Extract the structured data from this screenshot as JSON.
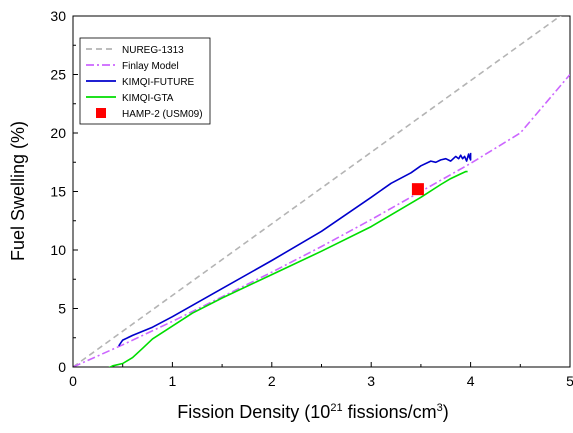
{
  "chart_data": {
    "type": "line",
    "title": "",
    "xlabel": {
      "prefix": "Fission Density (10",
      "sup1": "21",
      "middle": " fissions/cm",
      "sup2": "3",
      "suffix": ")"
    },
    "ylabel": "Fuel Swelling (%)",
    "xlim": [
      0,
      5
    ],
    "ylim": [
      0,
      30
    ],
    "xticks": [
      0,
      1,
      2,
      3,
      4,
      5
    ],
    "yticks": [
      0,
      5,
      10,
      15,
      20,
      25,
      30
    ],
    "grid": false,
    "legend_position": "top-left",
    "series": [
      {
        "name": "NUREG-1313",
        "kind": "line",
        "color": "#b4b4b4",
        "dash": "6,4",
        "x": [
          0,
          5
        ],
        "y": [
          0,
          30.6
        ]
      },
      {
        "name": "Finlay Model",
        "kind": "line",
        "color": "#cc66ff",
        "dash": "8,3,2,3",
        "x": [
          0,
          0.5,
          1,
          1.5,
          2,
          2.5,
          3,
          3.5,
          4,
          4.5,
          5
        ],
        "y": [
          0,
          1.9,
          3.9,
          6.0,
          8.1,
          10.3,
          12.6,
          15.0,
          17.4,
          20.0,
          25.0
        ]
      },
      {
        "name": "KIMQI-FUTURE",
        "kind": "line",
        "color": "#0000cc",
        "dash": "",
        "x": [
          0.46,
          0.5,
          0.6,
          0.8,
          1.0,
          1.5,
          2.0,
          2.5,
          3.0,
          3.2,
          3.4,
          3.5,
          3.6,
          3.65,
          3.7,
          3.75,
          3.8,
          3.85,
          3.88,
          3.9,
          3.92,
          3.94,
          3.96,
          3.98,
          3.99,
          4.0,
          4.0
        ],
        "y": [
          1.8,
          2.3,
          2.7,
          3.4,
          4.3,
          6.7,
          9.1,
          11.6,
          14.5,
          15.7,
          16.6,
          17.2,
          17.6,
          17.5,
          17.7,
          17.8,
          17.6,
          18.0,
          17.8,
          18.1,
          17.8,
          18.0,
          17.6,
          18.2,
          17.9,
          17.7,
          18.3
        ]
      },
      {
        "name": "KIMQI-GTA",
        "kind": "line",
        "color": "#00dd00",
        "dash": "",
        "x": [
          0.16,
          0.18,
          0.2,
          0.22,
          0.24,
          0.26,
          0.28,
          0.3,
          0.35,
          0.4,
          0.5,
          0.6,
          0.7,
          0.8,
          1.0,
          1.2,
          1.5,
          2.0,
          2.5,
          3.0,
          3.5,
          3.7,
          3.8,
          3.9,
          3.95,
          3.97
        ],
        "y": [
          -1.6,
          -1.2,
          -1.5,
          -1.0,
          -0.8,
          -0.3,
          -0.6,
          -0.2,
          -0.1,
          0.1,
          0.3,
          0.8,
          1.6,
          2.4,
          3.5,
          4.6,
          5.9,
          7.9,
          9.9,
          12.0,
          14.5,
          15.6,
          16.1,
          16.5,
          16.7,
          16.7
        ]
      },
      {
        "name": "HAMP-2 (USM09)",
        "kind": "marker",
        "color": "#ff0000",
        "dash": "",
        "x": [
          3.47
        ],
        "y": [
          15.2
        ]
      }
    ]
  }
}
